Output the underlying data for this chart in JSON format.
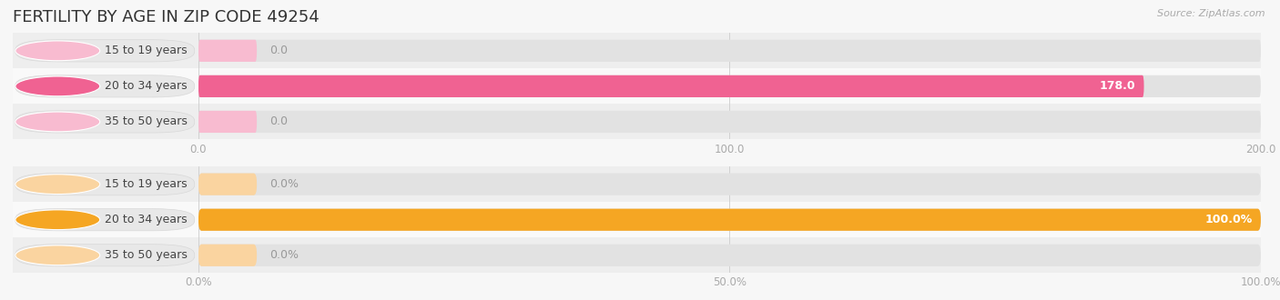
{
  "title": "FERTILITY BY AGE IN ZIP CODE 49254",
  "source": "Source: ZipAtlas.com",
  "background_color": "#f7f7f7",
  "top_chart": {
    "categories": [
      "15 to 19 years",
      "20 to 34 years",
      "35 to 50 years"
    ],
    "values": [
      0.0,
      178.0,
      0.0
    ],
    "xlim": [
      0,
      200
    ],
    "xticks": [
      0.0,
      100.0,
      200.0
    ],
    "xtick_labels": [
      "0.0",
      "100.0",
      "200.0"
    ],
    "bar_color": "#f06292",
    "bar_color_light": "#f8bbd0",
    "value_labels": [
      "0.0",
      "178.0",
      "0.0"
    ]
  },
  "bottom_chart": {
    "categories": [
      "15 to 19 years",
      "20 to 34 years",
      "35 to 50 years"
    ],
    "values": [
      0.0,
      100.0,
      0.0
    ],
    "xlim": [
      0,
      100
    ],
    "xticks": [
      0.0,
      50.0,
      100.0
    ],
    "xtick_labels": [
      "0.0%",
      "50.0%",
      "100.0%"
    ],
    "bar_color": "#f5a623",
    "bar_color_light": "#fad4a0",
    "value_labels": [
      "0.0%",
      "100.0%",
      "0.0%"
    ]
  },
  "bar_height": 0.62,
  "label_fontsize": 9,
  "tick_fontsize": 8.5,
  "title_fontsize": 13,
  "source_fontsize": 8,
  "row_colors": [
    "#eeeeee",
    "#f9f9f9",
    "#eeeeee"
  ]
}
